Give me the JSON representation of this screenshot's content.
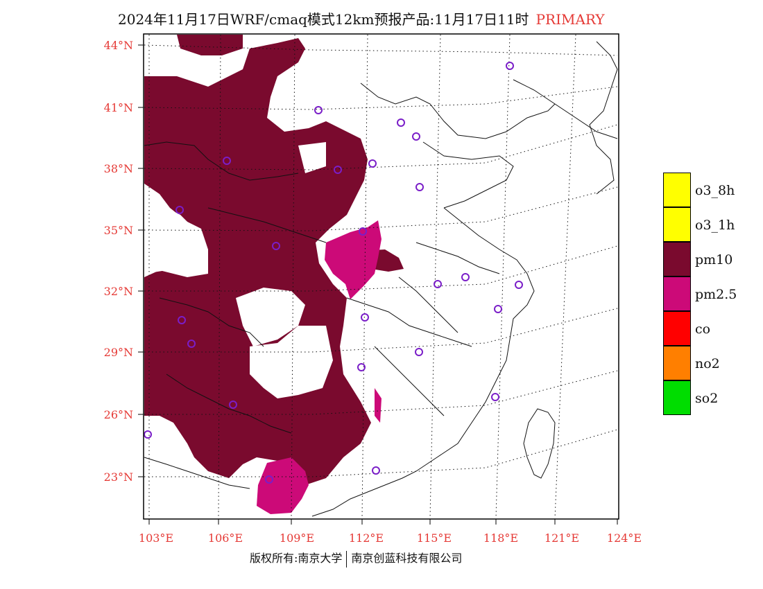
{
  "title": {
    "main": "2024年11月17日WRF/cmaq模式12km预报产品:11月17日11时",
    "tag": "PRIMARY"
  },
  "map": {
    "lat_labels": [
      "44°N",
      "41°N",
      "38°N",
      "35°N",
      "32°N",
      "29°N",
      "26°N",
      "23°N"
    ],
    "lon_labels": [
      "103°E",
      "106°E",
      "109°E",
      "112°E",
      "115°E",
      "118°E",
      "121°E",
      "124°E"
    ],
    "label_color": "#e53935",
    "colors": {
      "pm10": "#7a0a2e",
      "pm25": "#cc0a78",
      "station": "#7a1ec8",
      "border": "#111111"
    },
    "stations_count_note": ""
  },
  "legend": [
    {
      "label": "o3_8h",
      "color": "#ffff00"
    },
    {
      "label": "o3_1h",
      "color": "#ffff00"
    },
    {
      "label": "pm10",
      "color": "#7a0a2e"
    },
    {
      "label": "pm2.5",
      "color": "#cc0a78"
    },
    {
      "label": "co",
      "color": "#ff0000"
    },
    {
      "label": "no2",
      "color": "#ff7f00"
    },
    {
      "label": "so2",
      "color": "#00dd00"
    }
  ],
  "footer": {
    "left": "版权所有:南京大学",
    "right": "南京创蓝科技有限公司"
  }
}
